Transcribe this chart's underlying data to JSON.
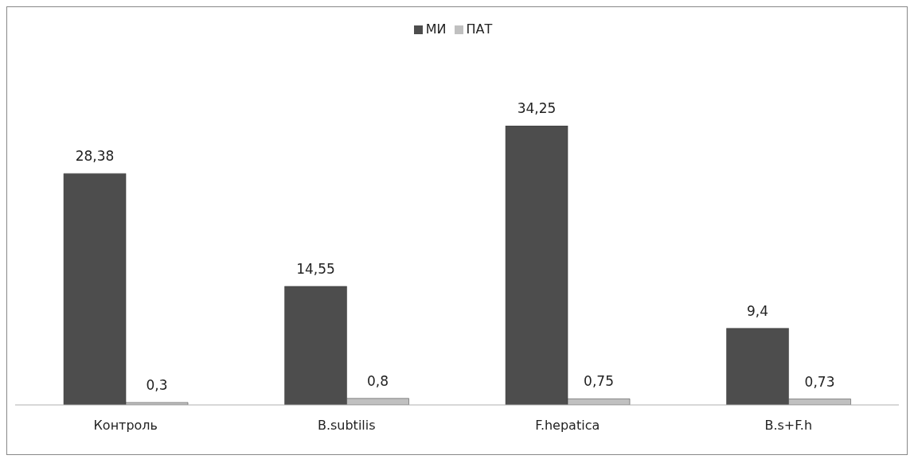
{
  "chart_data": {
    "type": "bar",
    "categories": [
      "Контроль",
      "B.subtilis",
      "F.hepatica",
      "B.s+F.h"
    ],
    "series": [
      {
        "name": "МИ",
        "color": "#4d4d4d",
        "values": [
          28.38,
          14.55,
          34.25,
          9.4
        ],
        "value_labels": [
          "28,38",
          "14,55",
          "34,25",
          "9,4"
        ]
      },
      {
        "name": "ПАТ",
        "color": "#c0c0c0",
        "values": [
          0.3,
          0.8,
          0.75,
          0.73
        ],
        "value_labels": [
          "0,3",
          "0,8",
          "0,75",
          "0,73"
        ]
      }
    ],
    "legend": "top",
    "grid": false
  }
}
